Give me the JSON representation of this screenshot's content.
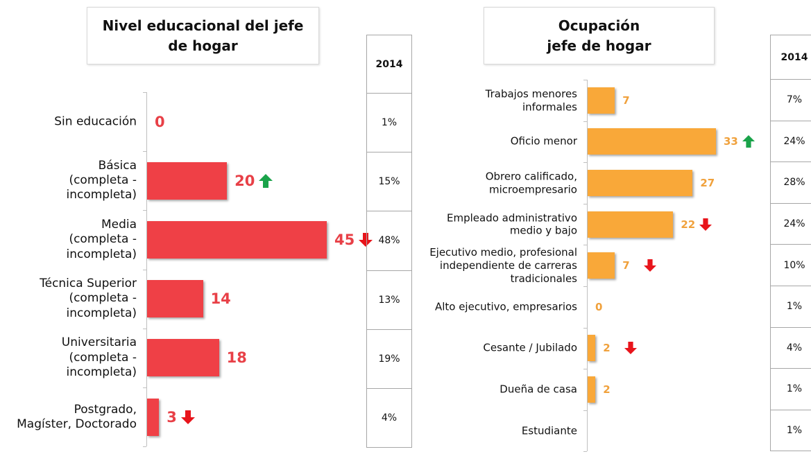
{
  "chart_data": [
    {
      "type": "bar",
      "orientation": "horizontal",
      "title": "Nivel educacional del jefe\nde hogar",
      "categories": [
        "Sin educación",
        "Básica\n(completa -\nincompleta)",
        "Media\n(completa -\nincompleta)",
        "Técnica Superior\n(completa -\nincompleta)",
        "Universitaria\n(completa -\nincompleta)",
        "Postgrado,\nMagíster, Doctorado"
      ],
      "values": [
        0,
        20,
        45,
        14,
        18,
        3
      ],
      "color": "#ef4046",
      "label_color": "#e84047",
      "arrows": [
        null,
        "up",
        "down",
        null,
        null,
        "down"
      ],
      "table": {
        "header": "2014",
        "rows": [
          "1%",
          "15%",
          "48%",
          "13%",
          "19%",
          "4%"
        ]
      }
    },
    {
      "type": "bar",
      "orientation": "horizontal",
      "title": "Ocupación\njefe de hogar",
      "categories": [
        "Trabajos menores\ninformales",
        "Oficio menor",
        "Obrero calificado,\nmicroempresario",
        "Empleado administrativo\nmedio y bajo",
        "Ejecutivo medio, profesional\nindependiente de carreras\ntradicionales",
        "Alto ejecutivo, empresarios",
        "Cesante / Jubilado",
        "Dueña de casa",
        "Estudiante"
      ],
      "values": [
        7,
        33,
        27,
        22,
        7,
        0,
        2,
        2,
        null
      ],
      "color": "#f9a839",
      "label_color": "#f0a13c",
      "arrows": [
        null,
        "up",
        null,
        "down",
        "down",
        null,
        "down",
        null,
        null
      ],
      "table": {
        "header": "2014",
        "rows": [
          "7%",
          "24%",
          "28%",
          "24%",
          "10%",
          "1%",
          "4%",
          "1%",
          "1%"
        ]
      }
    }
  ]
}
